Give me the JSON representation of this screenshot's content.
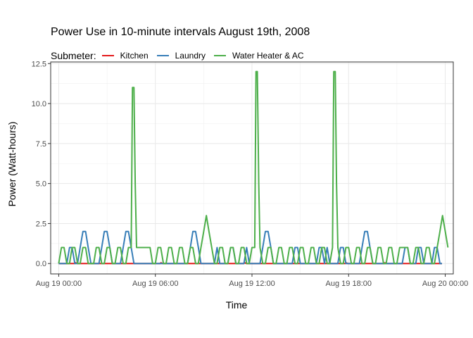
{
  "chart_data": {
    "type": "line",
    "title": "Power Use in 10-minute intervals August 19th, 2008",
    "xlabel": "Time",
    "ylabel": "Power (Watt-hours)",
    "legend_title": "Submeter:",
    "legend_position": "top-left",
    "grid": true,
    "x_unit": "hours from 2008-08-19 00:00",
    "xlim": [
      -0.5,
      24.5
    ],
    "ylim": [
      -0.65,
      12.6
    ],
    "x_ticks": [
      {
        "value": 0,
        "label": "Aug 19 00:00"
      },
      {
        "value": 6,
        "label": "Aug 19 06:00"
      },
      {
        "value": 12,
        "label": "Aug 19 12:00"
      },
      {
        "value": 18,
        "label": "Aug 19 18:00"
      },
      {
        "value": 24,
        "label": "Aug 20 00:00"
      }
    ],
    "y_ticks": [
      {
        "value": 0,
        "label": "0.0"
      },
      {
        "value": 2.5,
        "label": "2.5"
      },
      {
        "value": 5,
        "label": "5.0"
      },
      {
        "value": 7.5,
        "label": "7.5"
      },
      {
        "value": 10,
        "label": "10.0"
      },
      {
        "value": 12.5,
        "label": "12.5"
      }
    ],
    "series": [
      {
        "name": "Kitchen",
        "color": "#e41a1c",
        "points": [
          [
            0,
            0
          ],
          [
            1.0,
            0
          ],
          [
            1.05,
            0.05
          ],
          [
            1.15,
            0
          ],
          [
            6.3,
            0
          ],
          [
            6.35,
            0.05
          ],
          [
            6.45,
            0
          ],
          [
            11.5,
            0
          ],
          [
            11.55,
            0.05
          ],
          [
            11.65,
            0
          ],
          [
            17.8,
            0
          ],
          [
            17.85,
            0.05
          ],
          [
            17.95,
            0
          ],
          [
            20.2,
            0
          ],
          [
            20.25,
            0.05
          ],
          [
            20.35,
            0
          ],
          [
            23.8,
            0
          ]
        ]
      },
      {
        "name": "Laundry",
        "color": "#377eb8",
        "points": [
          [
            0,
            0
          ],
          [
            0.5,
            0
          ],
          [
            0.67,
            1
          ],
          [
            0.83,
            1
          ],
          [
            1,
            0
          ],
          [
            1.17,
            0
          ],
          [
            1.33,
            1
          ],
          [
            1.5,
            2
          ],
          [
            1.67,
            2
          ],
          [
            1.83,
            1
          ],
          [
            2,
            0
          ],
          [
            2.5,
            0
          ],
          [
            2.67,
            1
          ],
          [
            2.83,
            2
          ],
          [
            3,
            2
          ],
          [
            3.17,
            1
          ],
          [
            3.33,
            0
          ],
          [
            3.83,
            0
          ],
          [
            4,
            1
          ],
          [
            4.17,
            2
          ],
          [
            4.33,
            2
          ],
          [
            4.5,
            1
          ],
          [
            4.67,
            0
          ],
          [
            8,
            0
          ],
          [
            8.17,
            1
          ],
          [
            8.33,
            2
          ],
          [
            8.5,
            2
          ],
          [
            8.67,
            1
          ],
          [
            8.83,
            0
          ],
          [
            9.67,
            0
          ],
          [
            9.83,
            1
          ],
          [
            10,
            0
          ],
          [
            10.5,
            0
          ],
          [
            10.67,
            1
          ],
          [
            10.83,
            1
          ],
          [
            11,
            0
          ],
          [
            11.5,
            0
          ],
          [
            11.67,
            1
          ],
          [
            11.83,
            0
          ],
          [
            12.5,
            0
          ],
          [
            12.67,
            1
          ],
          [
            12.83,
            2
          ],
          [
            13,
            2
          ],
          [
            13.17,
            1
          ],
          [
            13.33,
            0
          ],
          [
            14.5,
            0
          ],
          [
            14.67,
            1
          ],
          [
            14.83,
            1
          ],
          [
            15,
            0
          ],
          [
            16,
            0
          ],
          [
            16.17,
            1
          ],
          [
            16.33,
            1
          ],
          [
            16.5,
            0
          ],
          [
            16.67,
            1
          ],
          [
            16.83,
            0
          ],
          [
            17.33,
            0
          ],
          [
            17.5,
            1
          ],
          [
            17.67,
            1
          ],
          [
            17.83,
            0
          ],
          [
            18.67,
            0
          ],
          [
            18.83,
            1
          ],
          [
            19,
            2
          ],
          [
            19.17,
            2
          ],
          [
            19.33,
            1
          ],
          [
            19.5,
            0
          ],
          [
            21.33,
            0
          ],
          [
            21.5,
            1
          ],
          [
            21.67,
            1
          ],
          [
            21.83,
            0
          ],
          [
            22.17,
            0
          ],
          [
            22.33,
            1
          ],
          [
            22.5,
            1
          ],
          [
            22.67,
            0
          ],
          [
            23.17,
            0
          ],
          [
            23.33,
            1
          ],
          [
            23.5,
            1
          ],
          [
            23.67,
            0
          ],
          [
            23.8,
            0
          ]
        ]
      },
      {
        "name": "Water Heater & AC",
        "color": "#4daf4a",
        "points": [
          [
            0,
            0
          ],
          [
            0.17,
            1
          ],
          [
            0.33,
            1
          ],
          [
            0.5,
            0
          ],
          [
            0.67,
            0
          ],
          [
            0.83,
            1
          ],
          [
            1,
            1
          ],
          [
            1.17,
            0
          ],
          [
            1.33,
            0
          ],
          [
            1.5,
            1
          ],
          [
            1.67,
            1
          ],
          [
            1.83,
            0
          ],
          [
            2.17,
            0
          ],
          [
            2.33,
            1
          ],
          [
            2.5,
            1
          ],
          [
            2.67,
            0
          ],
          [
            2.83,
            0
          ],
          [
            3,
            1
          ],
          [
            3.17,
            1
          ],
          [
            3.33,
            0
          ],
          [
            3.5,
            0
          ],
          [
            3.67,
            1
          ],
          [
            3.83,
            1
          ],
          [
            4,
            0
          ],
          [
            4.17,
            0
          ],
          [
            4.33,
            1
          ],
          [
            4.5,
            1
          ],
          [
            4.58,
            11
          ],
          [
            4.67,
            11
          ],
          [
            4.75,
            5
          ],
          [
            4.83,
            1
          ],
          [
            5.5,
            1
          ],
          [
            5.67,
            1
          ],
          [
            5.83,
            0
          ],
          [
            6,
            0
          ],
          [
            6.17,
            1
          ],
          [
            6.33,
            1
          ],
          [
            6.5,
            0
          ],
          [
            6.67,
            0
          ],
          [
            6.83,
            1
          ],
          [
            7,
            1
          ],
          [
            7.17,
            0
          ],
          [
            7.33,
            0
          ],
          [
            7.5,
            1
          ],
          [
            7.67,
            1
          ],
          [
            7.83,
            0
          ],
          [
            8,
            0
          ],
          [
            8.17,
            1
          ],
          [
            8.33,
            1
          ],
          [
            8.5,
            0
          ],
          [
            8.67,
            0
          ],
          [
            8.83,
            1
          ],
          [
            9,
            2
          ],
          [
            9.17,
            3
          ],
          [
            9.33,
            2
          ],
          [
            9.5,
            1
          ],
          [
            9.67,
            0
          ],
          [
            9.83,
            0
          ],
          [
            10,
            1
          ],
          [
            10.17,
            1
          ],
          [
            10.33,
            0
          ],
          [
            10.5,
            0
          ],
          [
            10.67,
            1
          ],
          [
            10.83,
            1
          ],
          [
            11,
            0
          ],
          [
            11.17,
            0
          ],
          [
            11.33,
            1
          ],
          [
            11.5,
            1
          ],
          [
            11.67,
            0
          ],
          [
            11.83,
            0
          ],
          [
            12,
            1
          ],
          [
            12.17,
            1
          ],
          [
            12.25,
            12
          ],
          [
            12.33,
            12
          ],
          [
            12.42,
            5
          ],
          [
            12.5,
            1
          ],
          [
            12.67,
            0
          ],
          [
            12.83,
            0
          ],
          [
            13,
            1
          ],
          [
            13.17,
            1
          ],
          [
            13.33,
            0
          ],
          [
            13.5,
            0
          ],
          [
            13.67,
            1
          ],
          [
            13.83,
            1
          ],
          [
            14,
            0
          ],
          [
            14.17,
            0
          ],
          [
            14.33,
            1
          ],
          [
            14.5,
            1
          ],
          [
            14.67,
            0
          ],
          [
            14.83,
            0
          ],
          [
            15,
            1
          ],
          [
            15.17,
            1
          ],
          [
            15.33,
            0
          ],
          [
            15.5,
            0
          ],
          [
            15.67,
            1
          ],
          [
            15.83,
            1
          ],
          [
            16,
            0
          ],
          [
            16.17,
            0
          ],
          [
            16.33,
            1
          ],
          [
            16.5,
            1
          ],
          [
            16.67,
            0
          ],
          [
            16.83,
            0
          ],
          [
            17,
            1
          ],
          [
            17.08,
            12
          ],
          [
            17.17,
            12
          ],
          [
            17.25,
            5
          ],
          [
            17.33,
            1
          ],
          [
            17.5,
            0
          ],
          [
            17.67,
            0
          ],
          [
            17.83,
            1
          ],
          [
            18,
            1
          ],
          [
            18.17,
            0
          ],
          [
            18.33,
            0
          ],
          [
            18.5,
            1
          ],
          [
            18.67,
            1
          ],
          [
            18.83,
            0
          ],
          [
            19,
            0
          ],
          [
            19.17,
            1
          ],
          [
            19.33,
            1
          ],
          [
            19.5,
            0
          ],
          [
            19.67,
            0
          ],
          [
            19.83,
            1
          ],
          [
            20,
            1
          ],
          [
            20.17,
            0
          ],
          [
            20.33,
            0
          ],
          [
            20.5,
            1
          ],
          [
            20.67,
            1
          ],
          [
            20.83,
            0
          ],
          [
            21,
            0
          ],
          [
            21.17,
            1
          ],
          [
            21.33,
            1
          ],
          [
            21.5,
            1
          ],
          [
            21.67,
            1
          ],
          [
            21.83,
            0
          ],
          [
            22,
            0
          ],
          [
            22.17,
            1
          ],
          [
            22.33,
            1
          ],
          [
            22.5,
            0
          ],
          [
            22.67,
            0
          ],
          [
            22.83,
            1
          ],
          [
            23,
            1
          ],
          [
            23.17,
            0
          ],
          [
            23.33,
            0
          ],
          [
            23.5,
            1
          ],
          [
            23.67,
            2
          ],
          [
            23.83,
            3
          ],
          [
            24,
            2
          ],
          [
            24.17,
            1
          ]
        ]
      }
    ]
  }
}
